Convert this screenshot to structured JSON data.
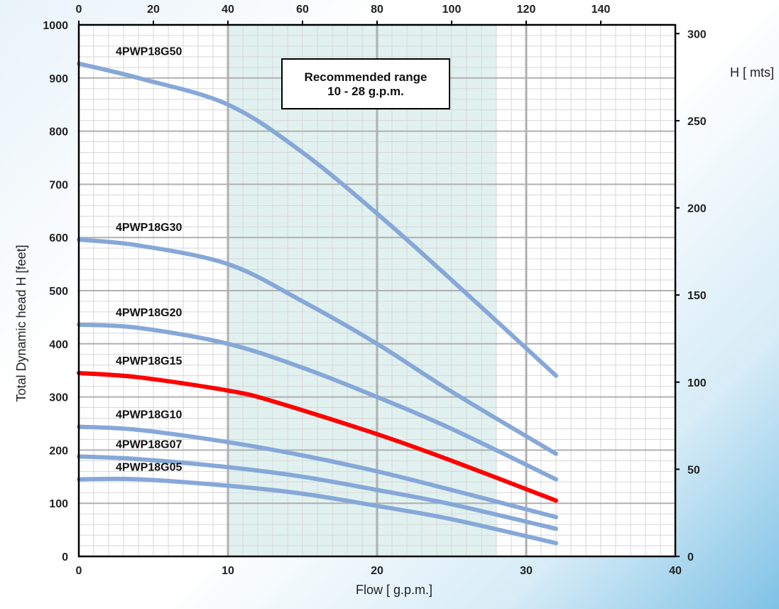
{
  "chart_data": {
    "type": "line",
    "xlabel": "Flow [ g.p.m.]",
    "ylabel": "Total Dynamic head H [feet]",
    "y2label": "H [ mts]",
    "xlim": [
      0,
      40
    ],
    "ylim": [
      0,
      1000
    ],
    "x2lim": [
      0,
      160
    ],
    "y2lim": [
      0,
      305
    ],
    "x_ticks": [
      "0",
      "10",
      "20",
      "30",
      "40"
    ],
    "x_tick_values": [
      0,
      10,
      20,
      30,
      40
    ],
    "y_ticks": [
      "0",
      "100",
      "200",
      "300",
      "400",
      "500",
      "600",
      "700",
      "800",
      "900",
      "1000"
    ],
    "y_tick_values": [
      0,
      100,
      200,
      300,
      400,
      500,
      600,
      700,
      800,
      900,
      1000
    ],
    "x2_ticks": [
      "0",
      "20",
      "40",
      "60",
      "80",
      "100",
      "120",
      "140"
    ],
    "x2_tick_values": [
      0,
      20,
      40,
      60,
      80,
      100,
      120,
      140
    ],
    "y2_ticks": [
      "0",
      "50",
      "100",
      "150",
      "200",
      "250",
      "300"
    ],
    "y2_tick_values": [
      0,
      50,
      100,
      150,
      200,
      250,
      300
    ],
    "grid": true,
    "shaded_range": [
      10,
      28
    ],
    "annotation": {
      "line1": "Recommended range",
      "line2": "10 - 28 g.p.m."
    },
    "series": [
      {
        "name": "4PWP18G50",
        "color": "#86a8d8",
        "x": [
          0,
          4,
          10,
          15,
          20,
          25,
          32
        ],
        "y": [
          927,
          900,
          850,
          760,
          645,
          520,
          340
        ]
      },
      {
        "name": "4PWP18G30",
        "color": "#86a8d8",
        "x": [
          0,
          4,
          10,
          15,
          20,
          25,
          32
        ],
        "y": [
          596,
          585,
          550,
          480,
          400,
          310,
          193
        ]
      },
      {
        "name": "4PWP18G20",
        "color": "#86a8d8",
        "x": [
          0,
          4,
          10,
          15,
          20,
          25,
          32
        ],
        "y": [
          436,
          430,
          400,
          355,
          300,
          240,
          145
        ]
      },
      {
        "name": "4PWP18G15",
        "color": "#ff0000",
        "x": [
          0,
          4,
          10,
          13,
          20,
          25,
          32
        ],
        "y": [
          345,
          337,
          312,
          292,
          230,
          180,
          105
        ]
      },
      {
        "name": "4PWP18G10",
        "color": "#86a8d8",
        "x": [
          0,
          4,
          10,
          15,
          20,
          25,
          32
        ],
        "y": [
          244,
          238,
          215,
          190,
          160,
          125,
          74
        ]
      },
      {
        "name": "4PWP18G07",
        "color": "#86a8d8",
        "x": [
          0,
          4,
          10,
          15,
          20,
          25,
          32
        ],
        "y": [
          188,
          183,
          168,
          150,
          125,
          98,
          52
        ]
      },
      {
        "name": "4PWP18G05",
        "color": "#86a8d8",
        "x": [
          0,
          4,
          10,
          15,
          20,
          25,
          32
        ],
        "y": [
          145,
          145,
          133,
          118,
          95,
          70,
          25
        ]
      }
    ]
  }
}
